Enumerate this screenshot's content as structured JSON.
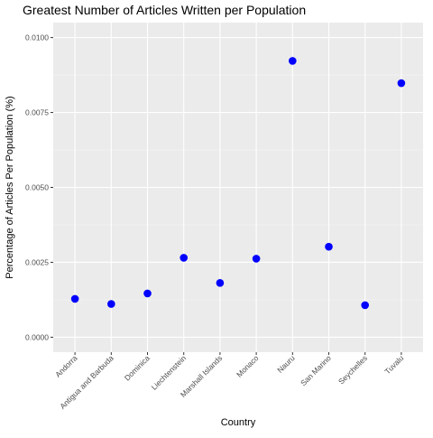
{
  "chart_data": {
    "type": "scatter",
    "title": "Greatest Number of Articles Written per Population",
    "xlabel": "Country",
    "ylabel": "Percentage of Articles Per Population (%)",
    "categories": [
      "Andorra",
      "Antigua and Barbuda",
      "Dominica",
      "Liechtenstein",
      "Marshall Islands",
      "Monaco",
      "Nauru",
      "San Marino",
      "Seychelles",
      "Tuvalu"
    ],
    "values": [
      0.00128,
      0.00111,
      0.00146,
      0.00265,
      0.00181,
      0.00262,
      0.00922,
      0.00302,
      0.00107,
      0.00848
    ],
    "yticks": [
      0,
      0.0025,
      0.005,
      0.0075,
      0.01
    ],
    "ytick_labels": [
      "0.0000",
      "0.0025",
      "0.0050",
      "0.0075",
      "0.0100"
    ],
    "ylim": [
      -0.0005,
      0.0105
    ],
    "grid": true,
    "legend": "none",
    "colors": {
      "panel": "#EBEBEB",
      "grid_major": "#FFFFFF",
      "grid_minor": "#F5F5F5",
      "point": "#0000FF",
      "tick_text": "#4D4D4D",
      "tick_mark": "#333333"
    }
  }
}
